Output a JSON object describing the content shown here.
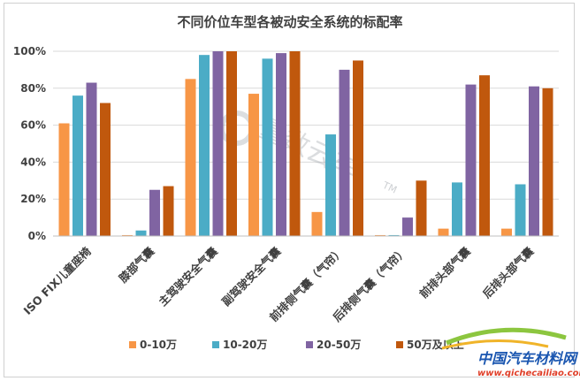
{
  "chart_data": {
    "type": "bar",
    "title": "不同价位车型各被动安全系统的标配率",
    "categories": [
      "ISO FIX儿童座椅",
      "膝部气囊",
      "主驾驶安全气囊",
      "副驾驶安全气囊",
      "前排侧气囊（气帘）",
      "后排侧气囊（气帘）",
      "前排头部气囊",
      "后排头部气囊"
    ],
    "series": [
      {
        "name": "0-10万",
        "color": "#f79646",
        "values": [
          61,
          0.5,
          85,
          77,
          13,
          0.5,
          4,
          4
        ]
      },
      {
        "name": "10-20万",
        "color": "#4bacc6",
        "values": [
          76,
          3,
          98,
          96,
          55,
          0.5,
          29,
          28
        ]
      },
      {
        "name": "20-50万",
        "color": "#8064a2",
        "values": [
          83,
          25,
          100,
          99,
          90,
          10,
          82,
          81
        ]
      },
      {
        "name": "50万及以上",
        "color": "#c0580d",
        "values": [
          72,
          27,
          100,
          100,
          95,
          30,
          87,
          80
        ]
      }
    ],
    "ylim": [
      0,
      100
    ],
    "yticks": [
      "0%",
      "20%",
      "40%",
      "60%",
      "80%",
      "100%"
    ],
    "grid": true,
    "legend_position": "bottom"
  },
  "watermark": {
    "text": "量数云车",
    "tm": "TM"
  },
  "logo": {
    "name": "中国汽车材料网",
    "url": "www.qichecailiao.com"
  }
}
